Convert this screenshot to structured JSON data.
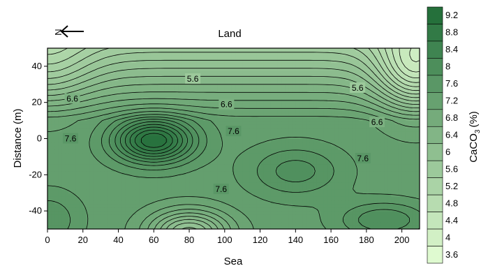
{
  "chart_data": {
    "type": "contour",
    "top_label": "Land",
    "xlabel": "Sea",
    "ylabel": "Distance (m)",
    "north_marker": "N",
    "colorbar_label_main": "CaCO",
    "colorbar_label_sub": "3",
    "colorbar_label_suffix": "(%)",
    "xlim": [
      0,
      210
    ],
    "ylim": [
      -50,
      50
    ],
    "x_ticks": [
      "0",
      "20",
      "40",
      "60",
      "80",
      "100",
      "120",
      "140",
      "160",
      "180",
      "200"
    ],
    "y_ticks": [
      "40",
      "20",
      "0",
      "-20",
      "-40"
    ],
    "y_tick_values": [
      40,
      20,
      0,
      -20,
      -40
    ],
    "x_tick_values": [
      0,
      20,
      40,
      60,
      80,
      100,
      120,
      140,
      160,
      180,
      200
    ],
    "colorbar_levels": [
      "9.2",
      "8.8",
      "8.4",
      "8",
      "7.6",
      "7.2",
      "6.8",
      "6.4",
      "6",
      "5.6",
      "5.2",
      "4.8",
      "4.4",
      "4",
      "3.6"
    ],
    "colorbar_values": [
      9.2,
      8.8,
      8.4,
      8.0,
      7.6,
      7.2,
      6.8,
      6.4,
      6.0,
      5.6,
      5.2,
      4.8,
      4.4,
      4.0,
      3.6
    ],
    "color_low": "#dffad0",
    "color_high": "#1e6b36",
    "contour_labels": [
      {
        "text": "5.6",
        "x": 82,
        "y": 33
      },
      {
        "text": "5.6",
        "x": 175,
        "y": 28
      },
      {
        "text": "6.6",
        "x": 14,
        "y": 22
      },
      {
        "text": "6.6",
        "x": 101,
        "y": 19
      },
      {
        "text": "6.6",
        "x": 186,
        "y": 9
      },
      {
        "text": "7.6",
        "x": 13,
        "y": 0
      },
      {
        "text": "7.6",
        "x": 105,
        "y": 4
      },
      {
        "text": "7.6",
        "x": 178,
        "y": -11
      },
      {
        "text": "7.6",
        "x": 98,
        "y": -28
      }
    ]
  }
}
